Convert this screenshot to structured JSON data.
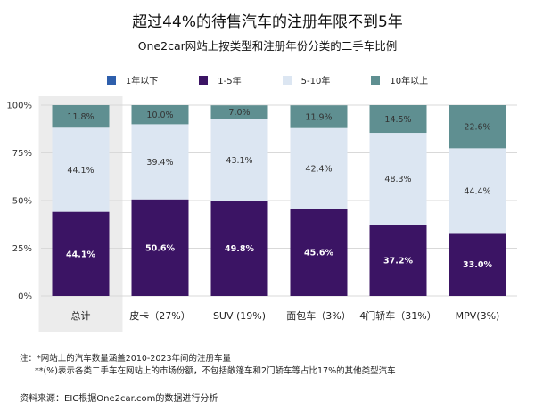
{
  "chart_data": {
    "type": "bar",
    "stacked": true,
    "title": "超过44%的待售汽车的注册年限不到5年",
    "subtitle": "One2car网站上按类型和注册年份分类的二手车比例",
    "categories": [
      "总计",
      "皮卡（27%）",
      "SUV (19%)",
      "面包车（3%）",
      "4门轿车（31%）",
      "MPV(3%)"
    ],
    "highlight_category": "总计",
    "ylim": [
      0,
      100
    ],
    "yticks": [
      "0%",
      "25%",
      "50%",
      "75%",
      "100%"
    ],
    "ytick_values": [
      0,
      25,
      50,
      75,
      100
    ],
    "legend_position": "top",
    "series": [
      {
        "name": "1年以下",
        "color": "#2e5fac",
        "values": [
          0,
          0,
          0,
          0,
          0,
          0
        ],
        "labels": [
          "",
          "",
          "",
          "",
          "",
          ""
        ]
      },
      {
        "name": "1-5年",
        "color": "#3b1464",
        "values": [
          44.1,
          50.6,
          49.8,
          45.6,
          37.2,
          33.0
        ],
        "labels": [
          "44.1%",
          "50.6%",
          "49.8%",
          "45.6%",
          "37.2%",
          "33.0%"
        ]
      },
      {
        "name": "5-10年",
        "color": "#dce6f2",
        "values": [
          44.1,
          39.4,
          43.1,
          42.4,
          48.3,
          44.4
        ],
        "labels": [
          "44.1%",
          "39.4%",
          "43.1%",
          "42.4%",
          "48.3%",
          "44.4%"
        ]
      },
      {
        "name": "10年以上",
        "color": "#5f8f91",
        "values": [
          11.8,
          10.0,
          7.0,
          11.9,
          14.5,
          22.6
        ],
        "labels": [
          "11.8%",
          "10.0%",
          "7.0%",
          "11.9%",
          "14.5%",
          "22.6%"
        ]
      }
    ]
  },
  "notes": {
    "line1": "注：*网站上的汽车数量涵盖2010-2023年间的注册车量",
    "line2": "**(%)表示各类二手车在网站上的市场份额，不包括敞篷车和2门轿车等占比17%的其他类型汽车"
  },
  "source": "资料来源：EIC根据One2car.com的数据进行分析"
}
